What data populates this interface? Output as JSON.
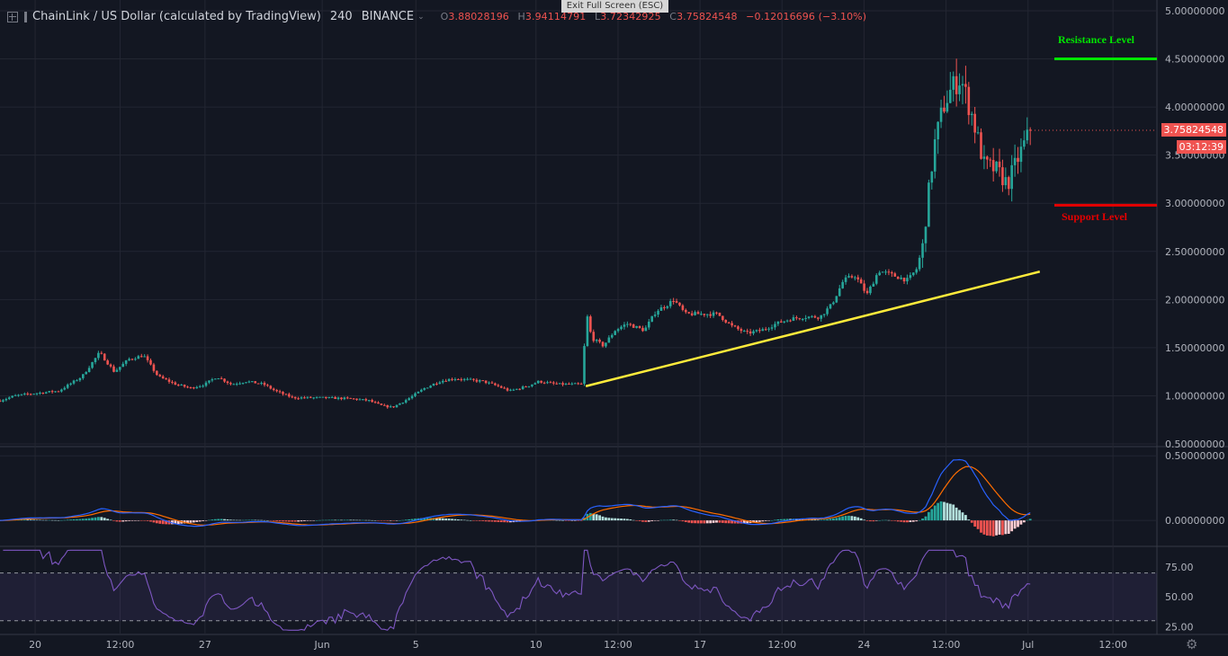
{
  "header": {
    "symbol": "ChainLink / US Dollar (calculated by TradingView)",
    "interval": "240",
    "exchange": "BINANCE",
    "o_label": "O",
    "o": "3.88028196",
    "h_label": "H",
    "h": "3.94114791",
    "l_label": "L",
    "l": "3.72342925",
    "c_label": "C",
    "c": "3.75824548",
    "change": "−0.12016696 (−3.10%)"
  },
  "exit_fullscreen": "Exit Full Screen (ESC)",
  "annotations": {
    "resistance": "Resistance Level",
    "support": "Support Level"
  },
  "price_tag": "3.75824548",
  "countdown_tag": "03:12:39",
  "colors": {
    "background": "#131722",
    "up": "#26a69a",
    "down": "#ef5350",
    "resistance": "#00e600",
    "support": "#e60000",
    "trendline": "#ffeb3b",
    "macd": "#2962ff",
    "signal": "#ff6d00",
    "rsi": "#7e57c2"
  },
  "chart_data": [
    {
      "type": "candlestick",
      "pane": "price",
      "ylim": [
        0.5,
        5.0
      ],
      "y_ticks": [
        "5.00000000",
        "4.50000000",
        "4.00000000",
        "3.50000000",
        "3.00000000",
        "2.50000000",
        "2.00000000",
        "1.50000000",
        "1.00000000",
        "0.50000000"
      ],
      "x_ticks": [
        "20",
        "12:00",
        "27",
        "Jun",
        "5",
        "10",
        "12:00",
        "17",
        "12:00",
        "24",
        "12:00",
        "Jul",
        "12:00"
      ],
      "close_path": [
        [
          0.0,
          0.95
        ],
        [
          0.5,
          1.0
        ],
        [
          1.0,
          1.02
        ],
        [
          2.0,
          1.05
        ],
        [
          2.8,
          1.2
        ],
        [
          3.4,
          1.45
        ],
        [
          3.9,
          1.25
        ],
        [
          4.4,
          1.38
        ],
        [
          4.9,
          1.42
        ],
        [
          5.4,
          1.2
        ],
        [
          6.0,
          1.12
        ],
        [
          6.5,
          1.08
        ],
        [
          7.0,
          1.12
        ],
        [
          7.4,
          1.2
        ],
        [
          7.9,
          1.12
        ],
        [
          8.4,
          1.15
        ],
        [
          9.0,
          1.12
        ],
        [
          9.4,
          1.05
        ],
        [
          10.0,
          0.98
        ],
        [
          11.0,
          0.98
        ],
        [
          12.0,
          0.97
        ],
        [
          12.6,
          0.95
        ],
        [
          13.0,
          0.9
        ],
        [
          13.4,
          0.88
        ],
        [
          14.0,
          0.98
        ],
        [
          14.5,
          1.08
        ],
        [
          15.0,
          1.15
        ],
        [
          15.5,
          1.18
        ],
        [
          16.5,
          1.15
        ],
        [
          17.0,
          1.1
        ],
        [
          17.4,
          1.05
        ],
        [
          18.0,
          1.1
        ],
        [
          18.4,
          1.15
        ],
        [
          19.0,
          1.12
        ],
        [
          19.9,
          1.12
        ],
        [
          20.0,
          1.9
        ],
        [
          20.2,
          1.6
        ],
        [
          20.6,
          1.52
        ],
        [
          21.0,
          1.68
        ],
        [
          21.4,
          1.75
        ],
        [
          22.0,
          1.68
        ],
        [
          22.4,
          1.88
        ],
        [
          22.8,
          1.95
        ],
        [
          23.0,
          2.0
        ],
        [
          23.4,
          1.85
        ],
        [
          24.0,
          1.85
        ],
        [
          24.5,
          1.85
        ],
        [
          25.0,
          1.72
        ],
        [
          25.5,
          1.65
        ],
        [
          26.0,
          1.68
        ],
        [
          26.5,
          1.75
        ],
        [
          27.0,
          1.8
        ],
        [
          27.5,
          1.82
        ],
        [
          28.0,
          1.82
        ],
        [
          28.4,
          1.95
        ],
        [
          28.8,
          2.2
        ],
        [
          29.2,
          2.25
        ],
        [
          29.6,
          2.05
        ],
        [
          30.0,
          2.3
        ],
        [
          30.5,
          2.25
        ],
        [
          31.0,
          2.2
        ],
        [
          31.3,
          2.32
        ],
        [
          31.5,
          2.55
        ],
        [
          31.7,
          3.1
        ],
        [
          31.9,
          3.6
        ],
        [
          32.2,
          4.0
        ],
        [
          32.5,
          4.2
        ],
        [
          32.8,
          4.3
        ],
        [
          33.2,
          3.9
        ],
        [
          33.6,
          3.4
        ],
        [
          34.0,
          3.35
        ],
        [
          34.4,
          3.2
        ],
        [
          34.8,
          3.5
        ],
        [
          35.1,
          3.7
        ],
        [
          35.2,
          3.76
        ]
      ],
      "trendline": [
        [
          20.0,
          1.1
        ],
        [
          35.5,
          2.29
        ]
      ],
      "resistance": 4.5,
      "support": 2.98,
      "last": 3.75824548
    },
    {
      "type": "macd",
      "pane": "macd",
      "ylim": [
        -0.18,
        0.55
      ],
      "y_ticks": [
        "0.50000000",
        "0.00000000"
      ],
      "peak_macd": 0.47,
      "peak_signal": 0.43
    },
    {
      "type": "rsi",
      "pane": "rsi",
      "ylim": [
        20,
        90
      ],
      "y_ticks": [
        "75.00",
        "50.00",
        "25.00"
      ],
      "band": [
        30,
        70
      ]
    }
  ]
}
